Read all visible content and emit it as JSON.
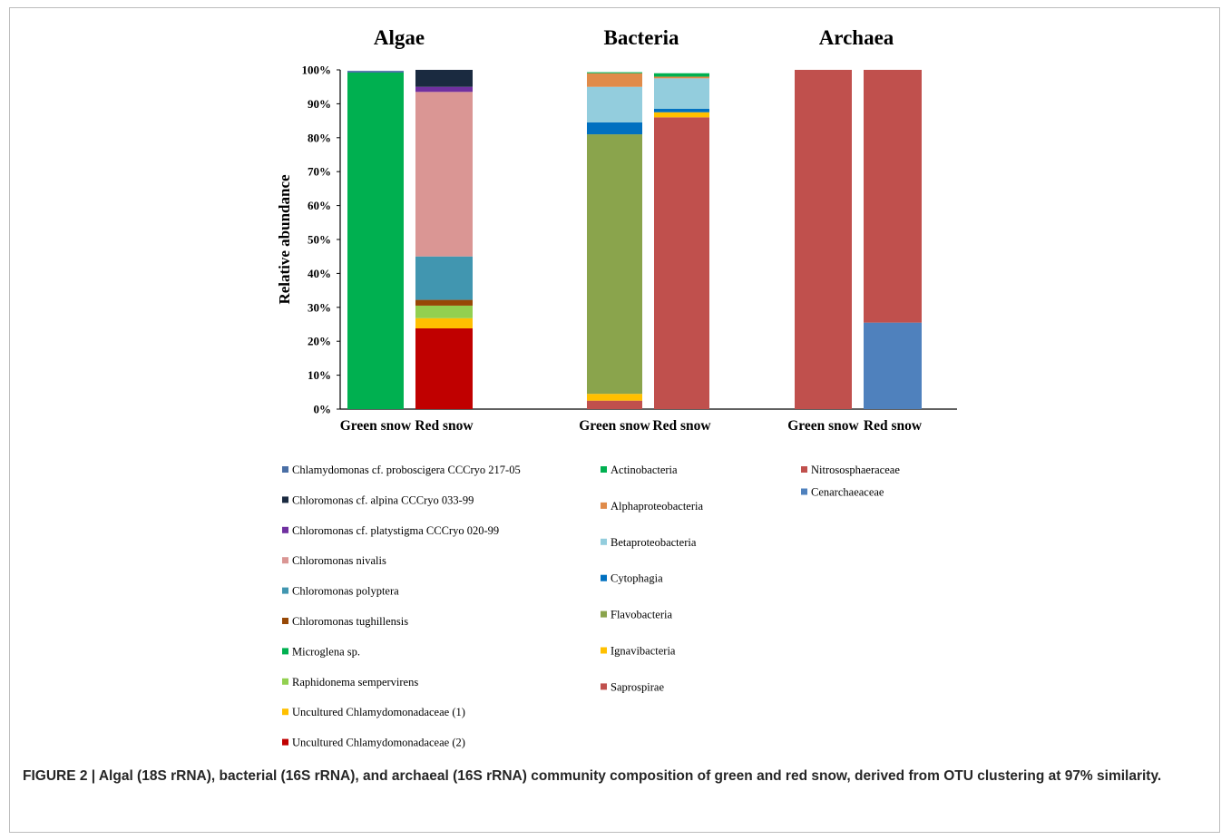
{
  "caption": "FIGURE 2 | Algal (18S rRNA), bacterial (16S rRNA), and archaeal (16S rRNA) community composition of green and red snow, derived from OTU clustering at 97% similarity.",
  "chart_data": {
    "type": "bar",
    "stacked": true,
    "normalized_percent": true,
    "ylabel": "Relative abundance",
    "ylim": [
      0,
      100
    ],
    "yticks": [
      "0%",
      "10%",
      "20%",
      "30%",
      "40%",
      "50%",
      "60%",
      "70%",
      "80%",
      "90%",
      "100%"
    ],
    "grid": false,
    "legend_position": "below",
    "panels": [
      {
        "title": "Algae",
        "categories": [
          "Green snow",
          "Red snow"
        ],
        "series": [
          {
            "name": "Chlamydomonas cf. proboscigera CCCryo 217-05",
            "color": "#4a6fa5",
            "values": [
              0.5,
              0
            ]
          },
          {
            "name": "Chloromonas cf. alpina CCCryo 033-99",
            "color": "#1a2a40",
            "values": [
              0,
              5
            ]
          },
          {
            "name": "Chloromonas cf. platystigma CCCryo 020-99",
            "color": "#7030a0",
            "values": [
              0,
              1.5
            ]
          },
          {
            "name": "Chloromonas nivalis",
            "color": "#da9694",
            "values": [
              0,
              48.5
            ]
          },
          {
            "name": "Chloromonas polyptera",
            "color": "#4196b0",
            "values": [
              0,
              12.8
            ]
          },
          {
            "name": "Chloromonas tughillensis",
            "color": "#974806",
            "values": [
              0,
              1.7
            ]
          },
          {
            "name": "Microglena sp.",
            "color": "#00b050",
            "values": [
              99.2,
              0
            ]
          },
          {
            "name": "Raphidonema sempervirens",
            "color": "#92d050",
            "values": [
              0,
              3.7
            ]
          },
          {
            "name": "Uncultured Chlamydomonadaceae (1)",
            "color": "#ffc000",
            "values": [
              0,
              3
            ]
          },
          {
            "name": "Uncultured Chlamydomonadaceae (2)",
            "color": "#c00000",
            "values": [
              0,
              23.8
            ]
          }
        ]
      },
      {
        "title": "Bacteria",
        "categories": [
          "Green snow",
          "Red snow"
        ],
        "series": [
          {
            "name": "Actinobacteria",
            "color": "#00b050",
            "values": [
              0.3,
              1
            ]
          },
          {
            "name": "Alphaproteobacteria",
            "color": "#e08b4a",
            "values": [
              4,
              0.5
            ]
          },
          {
            "name": "Betaproteobacteria",
            "color": "#93cddd",
            "values": [
              10.5,
              9
            ]
          },
          {
            "name": "Cytophagia",
            "color": "#0070c0",
            "values": [
              3.5,
              1
            ]
          },
          {
            "name": "Flavobacteria",
            "color": "#8aa44c",
            "values": [
              76.5,
              0
            ]
          },
          {
            "name": "Ignavibacteria",
            "color": "#ffc000",
            "values": [
              2,
              1.5
            ]
          },
          {
            "name": "Saprospirae",
            "color": "#c0504d",
            "values": [
              2.5,
              86
            ]
          }
        ]
      },
      {
        "title": "Archaea",
        "categories": [
          "Green snow",
          "Red snow"
        ],
        "series": [
          {
            "name": "Nitrososphaeraceae",
            "color": "#c0504d",
            "values": [
              100,
              74.5
            ]
          },
          {
            "name": "Cenarchaeaceae",
            "color": "#4f81bd",
            "values": [
              0,
              25.5
            ]
          }
        ]
      }
    ]
  }
}
